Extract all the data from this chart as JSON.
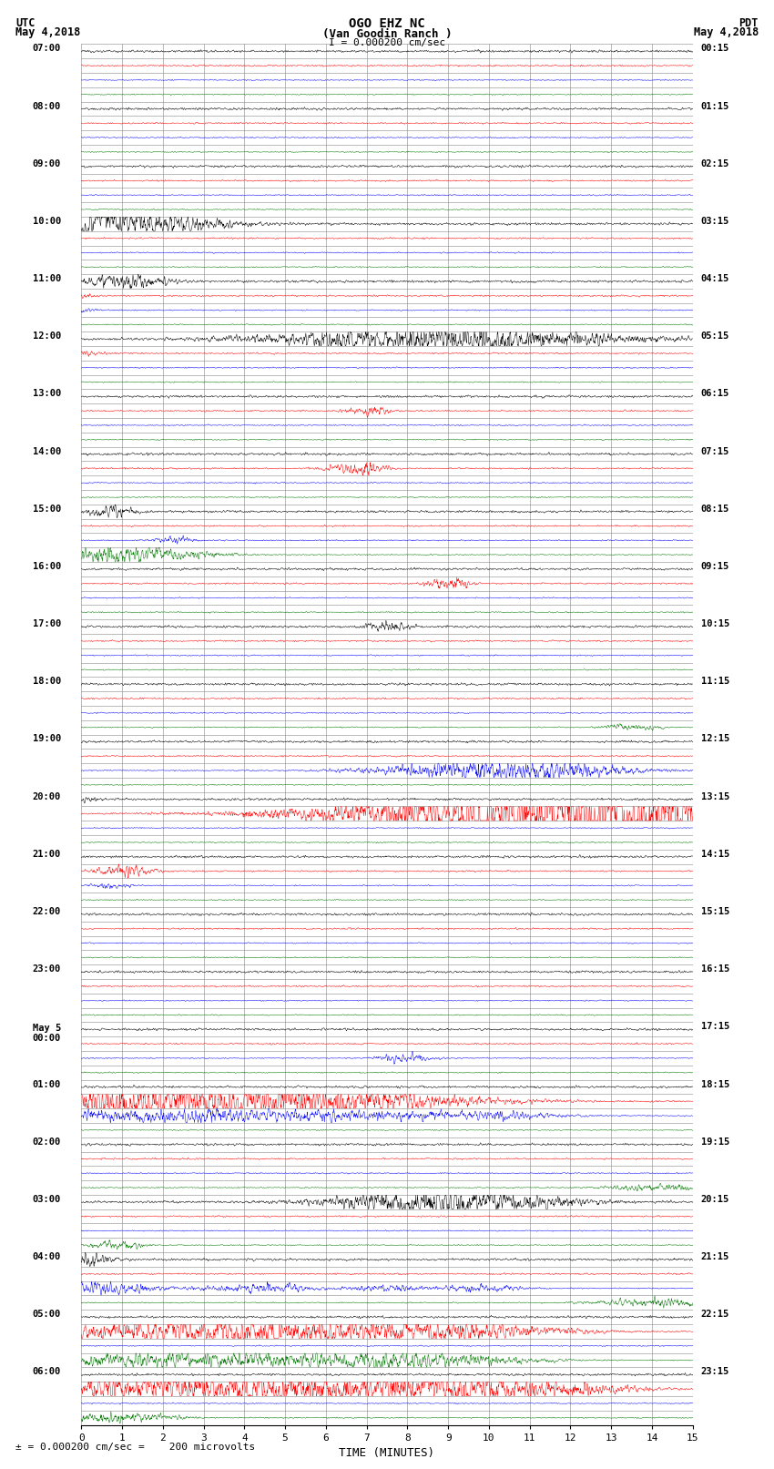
{
  "title_line1": "OGO EHZ NC",
  "title_line2": "(Van Goodin Ranch )",
  "title_line3": "I = 0.000200 cm/sec",
  "label_left_top": "UTC",
  "label_left_date": "May 4,2018",
  "label_right_top": "PDT",
  "label_right_date": "May 4,2018",
  "utc_labels": [
    "07:00",
    "08:00",
    "09:00",
    "10:00",
    "11:00",
    "12:00",
    "13:00",
    "14:00",
    "15:00",
    "16:00",
    "17:00",
    "18:00",
    "19:00",
    "20:00",
    "21:00",
    "22:00",
    "23:00",
    "May 5\n00:00",
    "01:00",
    "02:00",
    "03:00",
    "04:00",
    "05:00",
    "06:00"
  ],
  "pdt_labels": [
    "00:15",
    "01:15",
    "02:15",
    "03:15",
    "04:15",
    "05:15",
    "06:15",
    "07:15",
    "08:15",
    "09:15",
    "10:15",
    "11:15",
    "12:15",
    "13:15",
    "14:15",
    "15:15",
    "16:15",
    "17:15",
    "18:15",
    "19:15",
    "20:15",
    "21:15",
    "22:15",
    "23:15"
  ],
  "n_hours": 24,
  "traces_per_hour": 4,
  "n_minutes": 15,
  "bg_color": "#ffffff",
  "grid_color": "#888888",
  "trace_colors": [
    "#000000",
    "#ff0000",
    "#0000ff",
    "#007700"
  ],
  "xlabel": "TIME (MINUTES)",
  "footnote": "= 0.000200 cm/sec =    200 microvolts"
}
